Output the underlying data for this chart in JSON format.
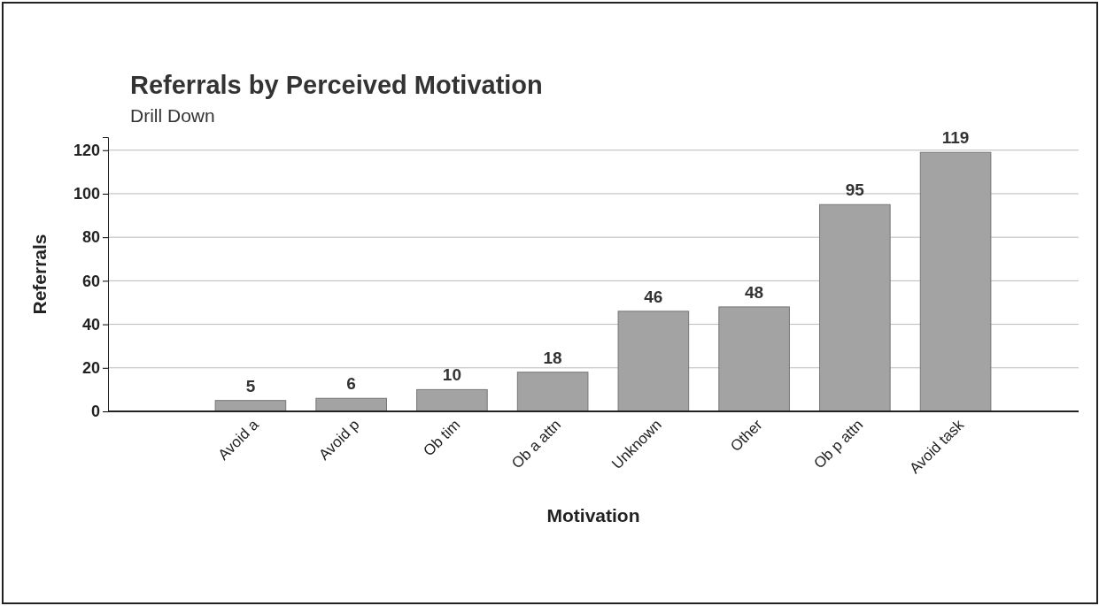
{
  "chart_data": {
    "type": "bar",
    "title": "Referrals by Perceived Motivation",
    "subtitle": "Drill Down",
    "xlabel": "Motivation",
    "ylabel": "Referrals",
    "categories": [
      "Avoid a",
      "Avoid p",
      "Ob tim",
      "Ob a attn",
      "Unknown",
      "Other",
      "Ob p attn",
      "Avoid task"
    ],
    "values": [
      5,
      6,
      10,
      18,
      46,
      48,
      95,
      119
    ],
    "color": "#a3a3a3",
    "ylim": [
      0,
      126
    ],
    "yticks": [
      0,
      20,
      40,
      60,
      80,
      100,
      120
    ],
    "grid": "y",
    "data_labels": true
  }
}
